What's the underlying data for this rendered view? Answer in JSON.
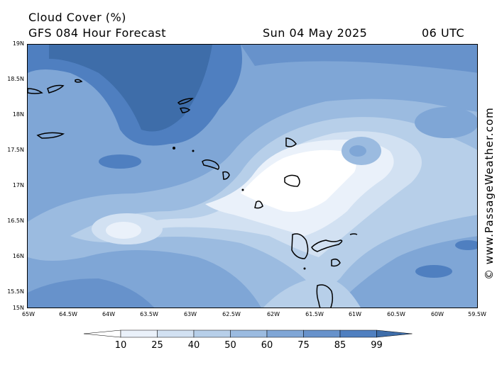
{
  "header": {
    "title": "Cloud Cover (%)",
    "model": "GFS 084 Hour Forecast",
    "date": "Sun 04 May 2025",
    "time": "06 UTC"
  },
  "watermark": "© www.PassageWeather.com",
  "map": {
    "lat_labels": [
      "19N",
      "18.5N",
      "18N",
      "17.5N",
      "17N",
      "16.5N",
      "16N",
      "15.5N",
      "15N"
    ],
    "lon_labels": [
      "65W",
      "64.5W",
      "64W",
      "63.5W",
      "63W",
      "62.5W",
      "62W",
      "61.5W",
      "61W",
      "60.5W",
      "60W",
      "59.5W"
    ],
    "lat_range": [
      15,
      19
    ],
    "lon_range": [
      -65,
      -59.5
    ]
  },
  "colorbar": {
    "labels": [
      "10",
      "25",
      "40",
      "50",
      "60",
      "75",
      "85",
      "99"
    ],
    "colors": [
      "#ffffff",
      "#eaf1fa",
      "#d2e1f2",
      "#b7cfe9",
      "#9bbbe0",
      "#7fa6d6",
      "#6792cb",
      "#4f7fc0",
      "#3e6da9"
    ]
  }
}
